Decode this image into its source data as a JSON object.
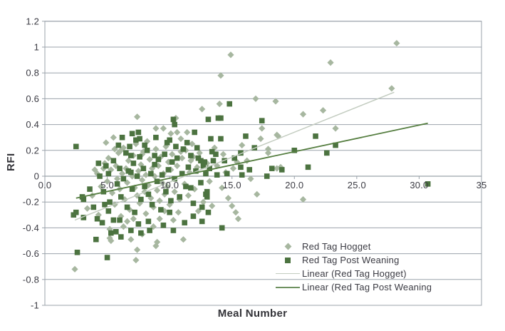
{
  "chart_data": {
    "type": "scatter",
    "title": "",
    "xlabel": "Meal Number",
    "ylabel": "RFI",
    "xlim": [
      0,
      35
    ],
    "ylim": [
      -1,
      1.2
    ],
    "x_ticks": {
      "values": [
        0,
        5,
        10,
        15,
        20,
        25,
        30,
        35
      ],
      "labels": [
        "0.0",
        "5.0",
        "10.0",
        "15.0",
        "20.0",
        "25.0",
        "30.0",
        "35"
      ]
    },
    "y_ticks": {
      "values": [
        1.2,
        1,
        0.8,
        0.6,
        0.4,
        0.2,
        0,
        -0.2,
        -0.4,
        -0.6,
        -0.8,
        -1
      ],
      "labels": [
        "1.2",
        "1",
        "0.8",
        "0.6",
        "0.4",
        "0.2",
        "0",
        "-0.2",
        "-0.4",
        "-0.6",
        "-0.8",
        "-1"
      ]
    },
    "grid": "horizontal",
    "axis_color": "#9ba3ab",
    "legend_position": "inside-bottom-right",
    "series": [
      {
        "name": "Red Tag Hogget",
        "marker": "diamond",
        "color": "#a7b7a0",
        "points": [
          [
            2.4,
            -0.72
          ],
          [
            28.2,
            1.03
          ],
          [
            14.9,
            0.94
          ],
          [
            22.9,
            0.88
          ],
          [
            14.1,
            0.78
          ],
          [
            27.8,
            0.68
          ],
          [
            16.9,
            0.6
          ],
          [
            18.5,
            0.58
          ],
          [
            14,
            0.56
          ],
          [
            12.6,
            0.52
          ],
          [
            22.3,
            0.51
          ],
          [
            20.7,
            0.48
          ],
          [
            7.4,
            0.46
          ],
          [
            10.5,
            0.45
          ],
          [
            17.4,
            0.37
          ],
          [
            23.3,
            0.37
          ],
          [
            8.9,
            0.37
          ],
          [
            9.5,
            0.37
          ],
          [
            11.4,
            0.34
          ],
          [
            10.6,
            0.34
          ],
          [
            10.1,
            0.33
          ],
          [
            5.5,
            0.3
          ],
          [
            10.9,
            0.29
          ],
          [
            17.3,
            0.29
          ],
          [
            18.6,
            0.32
          ],
          [
            18.7,
            0.31
          ],
          [
            15.8,
            0.24
          ],
          [
            17.9,
            0.21
          ],
          [
            6.1,
            0.2
          ],
          [
            7.8,
            0.17
          ],
          [
            14.3,
            0.17
          ],
          [
            17.9,
            0.18
          ],
          [
            11.7,
            0.12
          ],
          [
            15.4,
            0.11
          ],
          [
            18.6,
            0.06
          ],
          [
            18.9,
            0.07
          ],
          [
            4.7,
            0.06
          ],
          [
            14.2,
            -0.09
          ],
          [
            14.7,
            -0.17
          ],
          [
            17,
            -0.14
          ],
          [
            13.4,
            -0.23
          ],
          [
            15,
            -0.23
          ],
          [
            15.3,
            -0.28
          ],
          [
            15.5,
            -0.33
          ],
          [
            10.7,
            -0.28
          ],
          [
            10.3,
            -0.34
          ],
          [
            11.1,
            -0.49
          ],
          [
            20.7,
            -0.18
          ],
          [
            5.2,
            -0.41
          ],
          [
            5.3,
            -0.5
          ],
          [
            6.3,
            -0.39
          ],
          [
            7.8,
            -0.45
          ],
          [
            9,
            -0.51
          ],
          [
            8.7,
            -0.39
          ],
          [
            5.2,
            -0.48
          ],
          [
            6.9,
            -0.49
          ],
          [
            8.9,
            -0.54
          ],
          [
            7.4,
            -0.57
          ],
          [
            7.3,
            -0.65
          ],
          [
            4.2,
            0.02
          ],
          [
            4.5,
            -0.08
          ],
          [
            4.8,
            0.1
          ],
          [
            5,
            -0.04
          ],
          [
            5.1,
            0.14
          ],
          [
            5.3,
            0.05
          ],
          [
            5.4,
            -0.13
          ],
          [
            5.6,
            -0.22
          ],
          [
            5.7,
            0.08
          ],
          [
            5.8,
            -0.02
          ],
          [
            5.9,
            0.18
          ],
          [
            6,
            -0.1
          ],
          [
            6.2,
            0.02
          ],
          [
            6.3,
            0.22
          ],
          [
            6.4,
            -0.18
          ],
          [
            6.5,
            0.06
          ],
          [
            6.6,
            -0.05
          ],
          [
            6.7,
            0.12
          ],
          [
            6.8,
            -0.26
          ],
          [
            7,
            0
          ],
          [
            7.1,
            0.16
          ],
          [
            7.2,
            -0.09
          ],
          [
            7.3,
            0.25
          ],
          [
            7.4,
            -0.15
          ],
          [
            7.5,
            0.04
          ],
          [
            7.6,
            -0.21
          ],
          [
            7.7,
            0.09
          ],
          [
            7.8,
            -0.03
          ],
          [
            7.9,
            0.19
          ],
          [
            8,
            -0.12
          ],
          [
            8.1,
            0.01
          ],
          [
            8.2,
            0.27
          ],
          [
            8.3,
            -0.07
          ],
          [
            8.4,
            0.13
          ],
          [
            8.5,
            -0.17
          ],
          [
            8.6,
            0.06
          ],
          [
            8.7,
            -0.24
          ],
          [
            8.8,
            0
          ],
          [
            8.9,
            0.21
          ],
          [
            9,
            -0.11
          ],
          [
            9.1,
            0.08
          ],
          [
            9.2,
            -0.19
          ],
          [
            9.3,
            0.15
          ],
          [
            9.4,
            -0.05
          ],
          [
            9.5,
            0.02
          ],
          [
            9.6,
            -0.14
          ],
          [
            9.7,
            0.23
          ],
          [
            9.8,
            -0.08
          ],
          [
            9.9,
            0.11
          ],
          [
            10,
            -0.22
          ],
          [
            10.1,
            0.05
          ],
          [
            10.2,
            0.17
          ],
          [
            10.4,
            -0.12
          ],
          [
            10.6,
            0.08
          ],
          [
            10.8,
            -0.18
          ],
          [
            11,
            0.14
          ],
          [
            11.2,
            -0.06
          ],
          [
            11.3,
            0.2
          ],
          [
            11.5,
            -0.15
          ],
          [
            11.6,
            0.03
          ],
          [
            11.8,
            0.25
          ],
          [
            12,
            -0.1
          ],
          [
            12.2,
            0.07
          ],
          [
            12.4,
            0.18
          ],
          [
            12.7,
            -0.2
          ],
          [
            13,
            0.1
          ],
          [
            13.2,
            -0.04
          ],
          [
            13.6,
            0.22
          ],
          [
            3.4,
            -0.25
          ],
          [
            3.8,
            -0.15
          ],
          [
            4,
            0.05
          ],
          [
            4.3,
            -0.3
          ],
          [
            6.1,
            -0.31
          ],
          [
            6.6,
            -0.35
          ],
          [
            7.1,
            -0.33
          ],
          [
            8.1,
            -0.29
          ],
          [
            9.2,
            -0.33
          ],
          [
            9.6,
            -0.27
          ],
          [
            10.9,
            0.19
          ],
          [
            11.9,
            0.15
          ],
          [
            12.3,
            -0.27
          ],
          [
            13.8,
            0.08
          ],
          [
            14.5,
            0.03
          ],
          [
            15.1,
            0.06
          ],
          [
            16.2,
            0.12
          ],
          [
            16.5,
            -0.02
          ],
          [
            4.9,
            0.26
          ],
          [
            5.6,
            0.21
          ]
        ]
      },
      {
        "name": "Red Tag Post Weaning",
        "marker": "square",
        "color": "#4c7340",
        "points": [
          [
            2.5,
            0.23
          ],
          [
            14.8,
            0.56
          ],
          [
            14.1,
            0.45
          ],
          [
            13.1,
            0.44
          ],
          [
            13.9,
            0.45
          ],
          [
            10.3,
            0.44
          ],
          [
            10.4,
            0.4
          ],
          [
            17.4,
            0.43
          ],
          [
            12,
            0.34
          ],
          [
            7,
            0.33
          ],
          [
            7.5,
            0.34
          ],
          [
            7.6,
            0.29
          ],
          [
            7.3,
            0.28
          ],
          [
            8,
            0.24
          ],
          [
            6.8,
            0.23
          ],
          [
            13.3,
            0.29
          ],
          [
            14.1,
            0.29
          ],
          [
            16.1,
            0.31
          ],
          [
            21.7,
            0.31
          ],
          [
            23.3,
            0.24
          ],
          [
            20,
            0.2
          ],
          [
            22.6,
            0.18
          ],
          [
            13.4,
            0.19
          ],
          [
            13.7,
            0.17
          ],
          [
            15.7,
            0.18
          ],
          [
            10,
            0.28
          ],
          [
            10.5,
            0.23
          ],
          [
            6.9,
            0.16
          ],
          [
            8.8,
            0.16
          ],
          [
            12.5,
            0.12
          ],
          [
            12.8,
            0.11
          ],
          [
            15.7,
            0.07
          ],
          [
            21.1,
            0.07
          ],
          [
            18.2,
            0.06
          ],
          [
            19,
            0.05
          ],
          [
            5.1,
            0.02
          ],
          [
            6.9,
            0.03
          ],
          [
            12.9,
            0.02
          ],
          [
            13.8,
            0.01
          ],
          [
            14.6,
            0.02
          ],
          [
            15.8,
            0.01
          ],
          [
            17.8,
            0
          ],
          [
            11.7,
            -0.09
          ],
          [
            12.9,
            -0.14
          ],
          [
            13,
            -0.16
          ],
          [
            3,
            -0.16
          ],
          [
            3.1,
            -0.18
          ],
          [
            2.3,
            -0.3
          ],
          [
            2.5,
            -0.28
          ],
          [
            3.1,
            -0.32
          ],
          [
            4.2,
            -0.33
          ],
          [
            4.6,
            -0.36
          ],
          [
            4.8,
            -0.22
          ],
          [
            5.1,
            -0.27
          ],
          [
            5.5,
            -0.34
          ],
          [
            6,
            -0.34
          ],
          [
            4.1,
            -0.49
          ],
          [
            5.7,
            -0.43
          ],
          [
            6.9,
            -0.42
          ],
          [
            7.5,
            -0.37
          ],
          [
            8.3,
            -0.35
          ],
          [
            10,
            -0.28
          ],
          [
            12.6,
            -0.24
          ],
          [
            13.1,
            -0.28
          ],
          [
            11.9,
            -0.31
          ],
          [
            12.6,
            -0.35
          ],
          [
            14.2,
            -0.4
          ],
          [
            2.6,
            -0.59
          ],
          [
            5,
            -0.63
          ],
          [
            30.7,
            -0.06
          ],
          [
            4.4,
            0
          ],
          [
            4.7,
            -0.12
          ],
          [
            4.9,
            0.08
          ],
          [
            5.2,
            -0.2
          ],
          [
            5.5,
            0.12
          ],
          [
            5.8,
            -0.06
          ],
          [
            6,
            0.06
          ],
          [
            6.1,
            -0.16
          ],
          [
            6.3,
            -0.02
          ],
          [
            6.5,
            0.18
          ],
          [
            6.6,
            -0.24
          ],
          [
            6.7,
            0.04
          ],
          [
            7,
            -0.1
          ],
          [
            7.1,
            0.1
          ],
          [
            7.2,
            -0.28
          ],
          [
            7.4,
            0
          ],
          [
            7.6,
            0.15
          ],
          [
            7.7,
            -0.18
          ],
          [
            7.9,
            0.06
          ],
          [
            8,
            -0.08
          ],
          [
            8.2,
            0.2
          ],
          [
            8.3,
            -0.14
          ],
          [
            8.5,
            0.02
          ],
          [
            8.6,
            -0.22
          ],
          [
            8.8,
            0.09
          ],
          [
            9,
            -0.04
          ],
          [
            9.1,
            0.13
          ],
          [
            9.3,
            -0.26
          ],
          [
            9.4,
            0.01
          ],
          [
            9.6,
            0.17
          ],
          [
            9.7,
            -0.12
          ],
          [
            9.9,
            0.05
          ],
          [
            10.1,
            -0.19
          ],
          [
            10.2,
            0.11
          ],
          [
            10.4,
            -0.02
          ],
          [
            10.6,
            0.14
          ],
          [
            10.8,
            -0.16
          ],
          [
            11,
            0.02
          ],
          [
            11.1,
            0.21
          ],
          [
            11.3,
            -0.08
          ],
          [
            11.5,
            0.07
          ],
          [
            11.7,
            0.16
          ],
          [
            11.9,
            -0.21
          ],
          [
            12.1,
            0.04
          ],
          [
            12.3,
            0.14
          ],
          [
            12.5,
            -0.05
          ],
          [
            12.7,
            0.08
          ],
          [
            13,
            -0.12
          ],
          [
            13.2,
            0.06
          ],
          [
            13.5,
            0.12
          ],
          [
            3.6,
            -0.1
          ],
          [
            3.9,
            -0.24
          ],
          [
            4.3,
            0.1
          ],
          [
            5.9,
            0.24
          ],
          [
            6.2,
            0.3
          ],
          [
            5.3,
            -0.44
          ],
          [
            6.1,
            -0.47
          ],
          [
            7.7,
            -0.44
          ],
          [
            8.4,
            -0.42
          ],
          [
            9.5,
            -0.38
          ],
          [
            10.3,
            -0.42
          ],
          [
            11.2,
            -0.36
          ],
          [
            8.9,
            0.3
          ],
          [
            9.8,
            0.26
          ],
          [
            11.4,
            0.26
          ],
          [
            12.2,
            0.22
          ],
          [
            14.4,
            0.12
          ],
          [
            15.2,
            0.14
          ],
          [
            16.4,
            0.05
          ],
          [
            16.8,
            0.22
          ]
        ]
      }
    ],
    "trendlines": [
      {
        "name": "Linear (Red Tag Hogget)",
        "color": "#c3ccc0",
        "width": 1.5,
        "from": [
          2.4,
          -0.34
        ],
        "to": [
          28.0,
          0.65
        ]
      },
      {
        "name": "Linear (Red Tag Post Weaning",
        "color": "#547d3f",
        "width": 1.8,
        "from": [
          2.5,
          -0.17
        ],
        "to": [
          30.7,
          0.41
        ]
      }
    ]
  },
  "legend": {
    "items": [
      {
        "label": "Red Tag Hogget",
        "swatch": "diamond-marker-icon",
        "color": "#a7b7a0"
      },
      {
        "label": "Red Tag Post Weaning",
        "swatch": "square-marker-icon",
        "color": "#4c7340"
      },
      {
        "label": "Linear (Red Tag Hogget)",
        "swatch": "line-swatch-icon",
        "color": "#c3ccc0"
      },
      {
        "label": "Linear (Red Tag Post Weaning",
        "swatch": "line-swatch-icon",
        "color": "#6e915c"
      }
    ]
  }
}
